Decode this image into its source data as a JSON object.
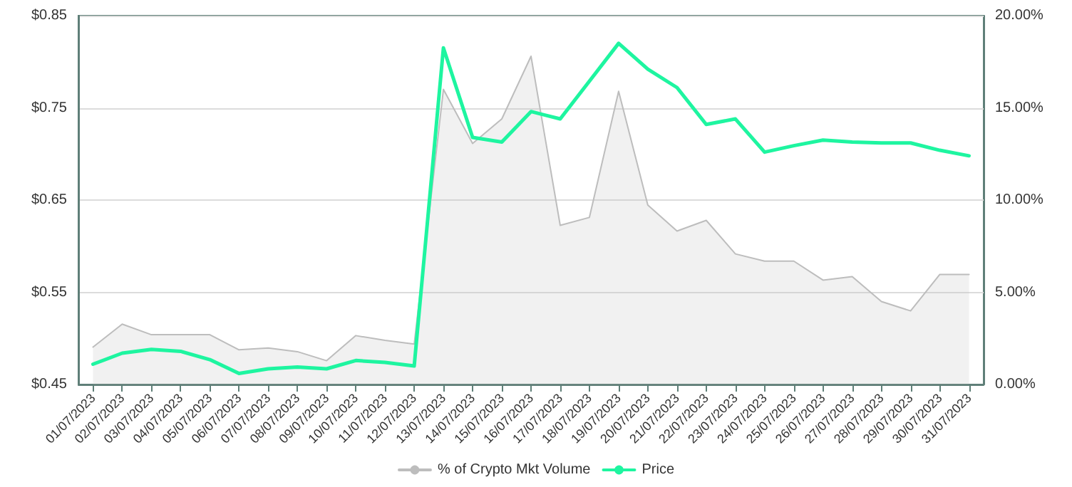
{
  "chart_data": {
    "type": "line",
    "categories": [
      "01/07/2023",
      "02/07/2023",
      "03/07/2023",
      "04/07/2023",
      "05/07/2023",
      "06/07/2023",
      "07/07/2023",
      "08/07/2023",
      "09/07/2023",
      "10/07/2023",
      "11/07/2023",
      "12/07/2023",
      "13/07/2023",
      "14/07/2023",
      "15/07/2023",
      "16/07/2023",
      "17/07/2023",
      "18/07/2023",
      "19/07/2023",
      "20/07/2023",
      "21/07/2023",
      "22/07/2023",
      "23/07/2023",
      "24/07/2023",
      "25/07/2023",
      "26/07/2023",
      "27/07/2023",
      "28/07/2023",
      "29/07/2023",
      "30/07/2023",
      "31/07/2023"
    ],
    "series": [
      {
        "name": "% of Crypto Mkt Volume",
        "type": "area",
        "axis": "y2",
        "color": "#bdbdbd",
        "values": [
          2.03,
          3.27,
          2.7,
          2.7,
          2.7,
          1.88,
          1.98,
          1.78,
          1.29,
          2.65,
          2.39,
          2.19,
          16.0,
          13.07,
          14.4,
          17.8,
          8.63,
          9.06,
          15.9,
          9.73,
          8.32,
          8.9,
          7.08,
          6.69,
          6.69,
          5.66,
          5.85,
          4.5,
          3.99,
          5.97,
          5.97
        ]
      },
      {
        "name": "Price",
        "type": "line",
        "color": "#1ef5a0",
        "values": [
          0.472,
          0.484,
          0.488,
          0.486,
          0.477,
          0.462,
          0.467,
          0.469,
          0.467,
          0.476,
          0.474,
          0.47,
          0.815,
          0.718,
          0.713,
          0.746,
          0.738,
          0.779,
          0.82,
          0.792,
          0.772,
          0.732,
          0.738,
          0.702,
          0.709,
          0.715,
          0.713,
          0.712,
          0.712,
          0.704,
          0.698
        ]
      }
    ],
    "ylim": [
      0.45,
      0.85
    ],
    "yticks": [
      {
        "value": 0.45,
        "label": "$0.45"
      },
      {
        "value": 0.55,
        "label": "$0.55"
      },
      {
        "value": 0.65,
        "label": "$0.65"
      },
      {
        "value": 0.75,
        "label": "$0.75"
      },
      {
        "value": 0.85,
        "label": "$0.85"
      }
    ],
    "y2lim": [
      0,
      20
    ],
    "y2ticks": [
      {
        "value": 0,
        "label": "0.00%"
      },
      {
        "value": 5,
        "label": "5.00%"
      },
      {
        "value": 10,
        "label": "10.00%"
      },
      {
        "value": 15,
        "label": "15.00%"
      },
      {
        "value": 20,
        "label": "20.00%"
      }
    ],
    "grid": "y",
    "legend": "bottom",
    "marker": "none",
    "line_style": "solid"
  }
}
